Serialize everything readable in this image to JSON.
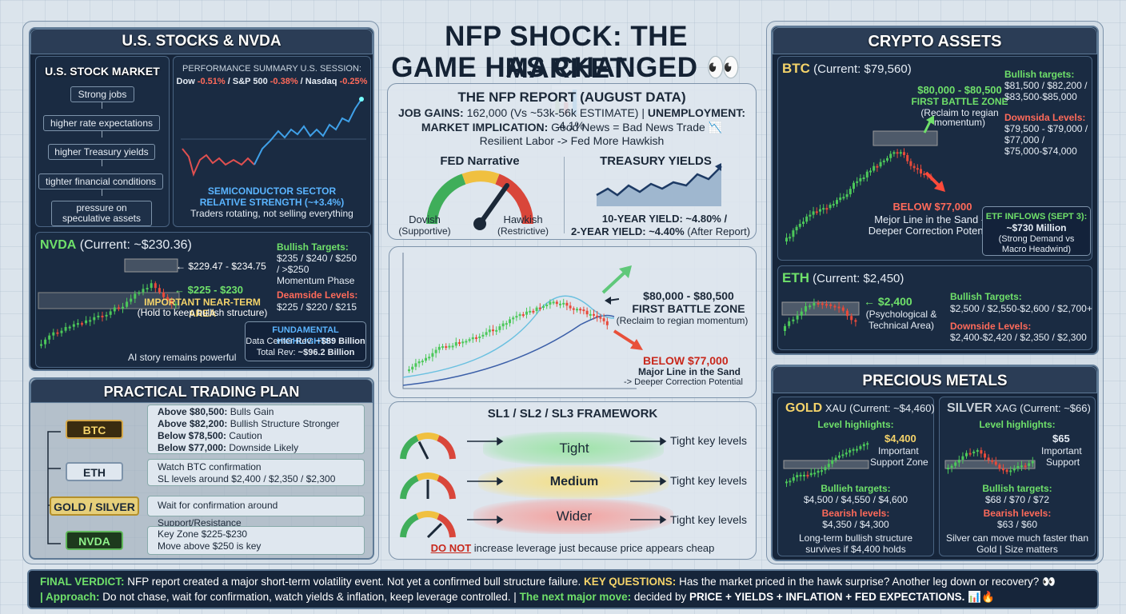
{
  "header": {
    "title_line1": "NFP SHOCK: THE MARKET",
    "title_line2": "GAME HAS CHANGED 👀📊"
  },
  "us": {
    "title": "U.S. STOCKS & NVDA",
    "market": {
      "title": "U.S. STOCK MARKET",
      "flow": [
        "Strong jobs",
        "higher rate expectations",
        "higher Treasury yields",
        "tighter financial conditions",
        "pressure on speculative assets"
      ]
    },
    "perf": {
      "title": "PERFORMANCE SUMMARY U.S. SESSION:",
      "dow_label": "Dow",
      "dow": "-0.51%",
      "sp_label": "S&P 500",
      "sp": "-0.38%",
      "nas_label": "Nasdaq",
      "nas": "-0.25%",
      "semi1": "SEMICONDUCTOR SECTOR",
      "semi2": "RELATIVE STRENGTH (~+3.4%)",
      "semi3": "Traders rotating, not selling everything"
    },
    "nvda": {
      "name": "NVDA",
      "current": "(Current: ~$230.36)",
      "lvl1": "$229.47 - $234.75",
      "lvl2": "$225 - $230",
      "important": "IMPORTANT NEAR-TERM AREA",
      "hold": "(Hold to keep bullish structure)",
      "bull_title": "Bullish Targets:",
      "bull1": "$235 / $240 / $250",
      "bull2": "/ >$250",
      "bull3": "Momentum Phase",
      "bear_title": "Deamside Levels:",
      "bear1": "$225 / $220 / $215",
      "fund_title": "FUNDAMENTAL HIGHLIGHTS:",
      "fund1_label": "Data Center Rev:",
      "fund1": "~$89 Billion",
      "fund2_label": "Total Rev:",
      "fund2": "~$96.2 Billion",
      "ai": "AI story remains powerful"
    }
  },
  "plan": {
    "title": "PRACTICAL TRADING PLAN",
    "btc": {
      "label": "BTC",
      "l1b": "Above $80,500:",
      "l1": "Bulls Gain",
      "l2b": "Above $82,200:",
      "l2": "Bullish Structure Stronger",
      "l3b": "Below $78,500:",
      "l3": "Caution",
      "l4b": "Below $77,000:",
      "l4": "Downside Likely"
    },
    "eth": {
      "label": "ETH",
      "l1": "Watch BTC confirmation",
      "l2": "SL levels around $2,400 / $2,350 / $2,300"
    },
    "gold": {
      "label": "GOLD / SILVER",
      "l1": "Wait for confirmation around Support/Resistance"
    },
    "nvda": {
      "label": "NVDA",
      "l1": "Key Zone $225-$230",
      "l2": "Move above $250 is key"
    }
  },
  "nfp": {
    "title": "THE NFP REPORT (AUGUST DATA)",
    "jobs_label": "JOB GAINS:",
    "jobs": "162,000 (Vs ~53k-56k ESTIMATE)",
    "unemp_label": "UNEMPLOYMENT:",
    "unemp": "4.1%",
    "impl_label": "MARKET IMPLICATION:",
    "impl": "Good News = Bad News Trade 📉",
    "impl2": "Resilient Labor -> Fed More Hawkish",
    "fed": {
      "title": "FED Narrative",
      "dovish": "Dovish",
      "dovish_sub": "(Supportive)",
      "hawkish": "Hawkish",
      "hawkish_sub": "(Restrictive)"
    },
    "treasury": {
      "title": "TREASURY YIELDS",
      "y10": "10-YEAR YIELD: ~4.80% /",
      "y2": "2-YEAR YIELD: ~4.40%",
      "after": "(After Report)"
    }
  },
  "btc_center": {
    "l1": "$80,000 - $80,500",
    "l2": "FIRST BATTLE ZONE",
    "l3": "(Reclaim to regian momentum)",
    "b1": "BELOW $77,000",
    "b2": "Major Line in the Sand",
    "b3": "-> Deeper Correction Potential"
  },
  "sl": {
    "title": "SL1 / SL2 / SL3 FRAMEWORK",
    "tight": "Tight",
    "medium": "Medium",
    "wider": "Wider",
    "key": "Tight key levels",
    "warn_b": "DO NOT",
    "warn": "increase leverage just because price appears cheap"
  },
  "crypto": {
    "title": "CRYPTO ASSETS",
    "btc": {
      "name": "BTC",
      "current": "(Current: $79,560)",
      "zone1": "$80,000 - $80,500",
      "zone2": "FIRST BATTLE ZONE",
      "zone3": "(Reclaim to regian",
      "zone4": "momentum)",
      "below": "BELOW $77,000",
      "below2": "Mejor Line in the Sand ->",
      "below3": "Deeper Correction Potential",
      "bull_title": "Bullish targets:",
      "bull1": "$81,500 / $82,200 /",
      "bull2": "$83,500-$85,000",
      "down_title": "Downsida Levels:",
      "down1": "$79,500 - $79,000 /",
      "down2": "$77,000 /",
      "down3": "$75,000-$74,000",
      "etf1": "ETF INFLOWS (SEPT 3):",
      "etf2": "~$730 Million",
      "etf3": "(Strong Demand vs",
      "etf4": "Macro Headwind)"
    },
    "eth": {
      "name": "ETH",
      "current": "(Current: $2,450)",
      "lvl": "$2,400",
      "lvl2": "(Psychological &",
      "lvl3": "Technical Area)",
      "bull_title": "Bullish Targets:",
      "bull1": "$2,500 / $2,550-$2,600 / $2,700+",
      "down_title": "Downside Levels:",
      "down1": "$2,400-$2,420 / $2,350 / $2,300"
    }
  },
  "metals": {
    "title": "PRECIOUS METALS",
    "gold": {
      "name": "GOLD",
      "sym": "XAU (Current: ~$4,460)",
      "hl": "Level highlights:",
      "lvl": "$4,400",
      "lvl2": "Important",
      "lvl3": "Support Zone",
      "bull_title": "Bullieh targets:",
      "bull": "$4,500 / $4,550 / $4,600",
      "bear_title": "Bearish levels:",
      "bear": "$4,350 / $4,300",
      "note1": "Long-term bullish structure",
      "note2": "survives if $4,400 holds"
    },
    "silver": {
      "name": "SILVER",
      "sym": "XAG (Current: ~$66)",
      "hl": "Level highlights:",
      "lvl": "$65",
      "lvl2": "Important",
      "lvl3": "Support",
      "bull_title": "Bullish targets:",
      "bull": "$68 / $70 / $72",
      "bear_title": "Bearish levels:",
      "bear": "$63 / $60",
      "note1": "Silver can move much faster than",
      "note2": "Gold | Size matters"
    }
  },
  "verdict": {
    "label": "FINAL VERDICT:",
    "t1": "NFP report created a major short-term volatility event. Not yet a confirmed bull structure failure.",
    "kq": "KEY QUESTIONS:",
    "t2": "Has the market priced in the hawk surprise? Another leg down or recovery? 👀",
    "ap": "| Approach:",
    "t3": "Do not chase, wait for confirmation, watch yields & inflation, keep leverage controlled. |",
    "nm": "The next major move:",
    "t4": "decided by",
    "t5": "PRICE + YIELDS + INFLATION + FED EXPECTATIONS. 📊🔥"
  },
  "colors": {
    "green": "#6fe06a",
    "yellow": "#f4d36a",
    "red": "#ff6a5a",
    "navy": "#16253a"
  }
}
